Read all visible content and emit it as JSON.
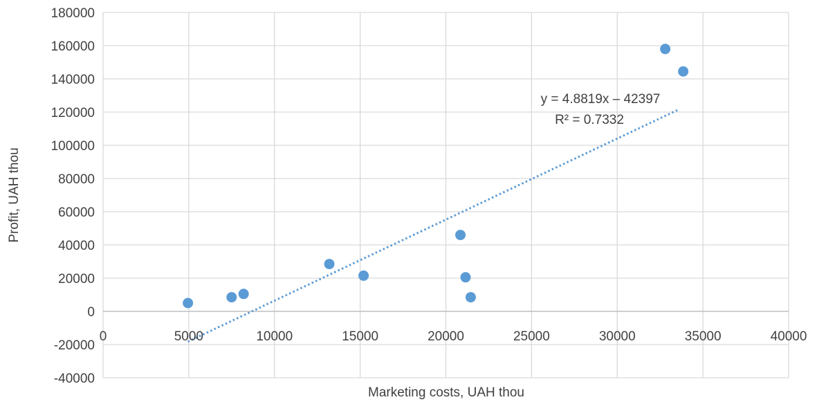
{
  "chart_data": {
    "type": "scatter",
    "title": "",
    "xlabel": "Marketing costs, UAH thou",
    "ylabel": "Profit, UAH thou",
    "xlim": [
      0,
      40000
    ],
    "ylim": [
      -40000,
      180000
    ],
    "x_ticks": [
      0,
      5000,
      10000,
      15000,
      20000,
      25000,
      30000,
      35000,
      40000
    ],
    "y_ticks": [
      -40000,
      -20000,
      0,
      20000,
      40000,
      60000,
      80000,
      100000,
      120000,
      140000,
      160000,
      180000
    ],
    "grid": true,
    "series": [
      {
        "color": "#5b9bd5",
        "points": [
          {
            "x": 4950,
            "y": 5000
          },
          {
            "x": 7500,
            "y": 8500
          },
          {
            "x": 8200,
            "y": 10500
          },
          {
            "x": 13200,
            "y": 28500
          },
          {
            "x": 15200,
            "y": 21500
          },
          {
            "x": 20850,
            "y": 46000
          },
          {
            "x": 21150,
            "y": 20500
          },
          {
            "x": 21450,
            "y": 8500
          },
          {
            "x": 32800,
            "y": 158000
          },
          {
            "x": 33850,
            "y": 144500
          }
        ]
      }
    ],
    "trendline": {
      "type": "linear",
      "slope": 4.8819,
      "intercept": -42397,
      "x_range": [
        4950,
        33600
      ],
      "equation_label": "y = 4.8819x – 42397",
      "r2_label": "R² = 0.7332",
      "color": "#5b9bd5"
    }
  }
}
